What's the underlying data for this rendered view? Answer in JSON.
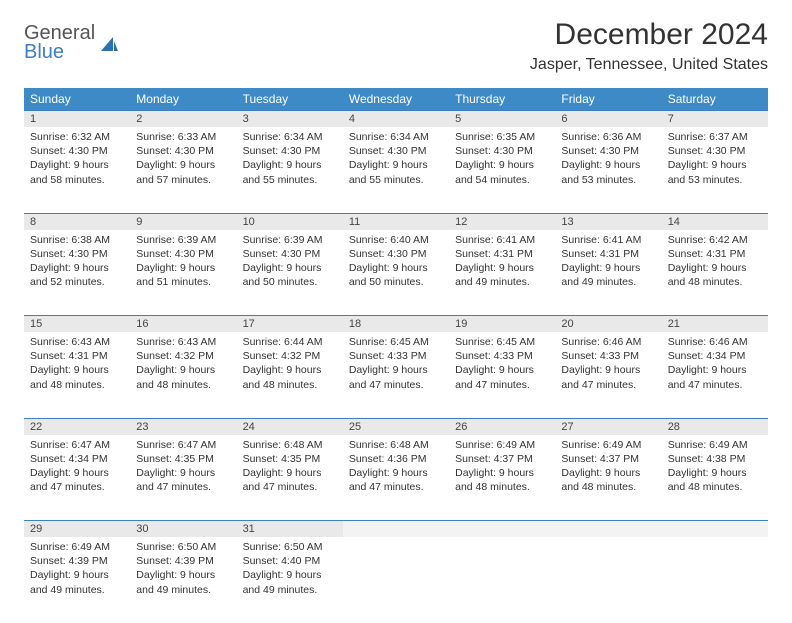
{
  "logo": {
    "line1": "General",
    "line2": "Blue",
    "sail_color": "#2e6fae"
  },
  "title": "December 2024",
  "location": "Jasper, Tennessee, United States",
  "header_bg": "#3d8ac7",
  "daynum_bg": "#e9e9e9",
  "rule_color": "#3d7fbf",
  "days_of_week": [
    "Sunday",
    "Monday",
    "Tuesday",
    "Wednesday",
    "Thursday",
    "Friday",
    "Saturday"
  ],
  "weeks": [
    [
      {
        "n": "1",
        "sr": "6:32 AM",
        "ss": "4:30 PM",
        "dl": "9 hours and 58 minutes."
      },
      {
        "n": "2",
        "sr": "6:33 AM",
        "ss": "4:30 PM",
        "dl": "9 hours and 57 minutes."
      },
      {
        "n": "3",
        "sr": "6:34 AM",
        "ss": "4:30 PM",
        "dl": "9 hours and 55 minutes."
      },
      {
        "n": "4",
        "sr": "6:34 AM",
        "ss": "4:30 PM",
        "dl": "9 hours and 55 minutes."
      },
      {
        "n": "5",
        "sr": "6:35 AM",
        "ss": "4:30 PM",
        "dl": "9 hours and 54 minutes."
      },
      {
        "n": "6",
        "sr": "6:36 AM",
        "ss": "4:30 PM",
        "dl": "9 hours and 53 minutes."
      },
      {
        "n": "7",
        "sr": "6:37 AM",
        "ss": "4:30 PM",
        "dl": "9 hours and 53 minutes."
      }
    ],
    [
      {
        "n": "8",
        "sr": "6:38 AM",
        "ss": "4:30 PM",
        "dl": "9 hours and 52 minutes."
      },
      {
        "n": "9",
        "sr": "6:39 AM",
        "ss": "4:30 PM",
        "dl": "9 hours and 51 minutes."
      },
      {
        "n": "10",
        "sr": "6:39 AM",
        "ss": "4:30 PM",
        "dl": "9 hours and 50 minutes."
      },
      {
        "n": "11",
        "sr": "6:40 AM",
        "ss": "4:30 PM",
        "dl": "9 hours and 50 minutes."
      },
      {
        "n": "12",
        "sr": "6:41 AM",
        "ss": "4:31 PM",
        "dl": "9 hours and 49 minutes."
      },
      {
        "n": "13",
        "sr": "6:41 AM",
        "ss": "4:31 PM",
        "dl": "9 hours and 49 minutes."
      },
      {
        "n": "14",
        "sr": "6:42 AM",
        "ss": "4:31 PM",
        "dl": "9 hours and 48 minutes."
      }
    ],
    [
      {
        "n": "15",
        "sr": "6:43 AM",
        "ss": "4:31 PM",
        "dl": "9 hours and 48 minutes."
      },
      {
        "n": "16",
        "sr": "6:43 AM",
        "ss": "4:32 PM",
        "dl": "9 hours and 48 minutes."
      },
      {
        "n": "17",
        "sr": "6:44 AM",
        "ss": "4:32 PM",
        "dl": "9 hours and 48 minutes."
      },
      {
        "n": "18",
        "sr": "6:45 AM",
        "ss": "4:33 PM",
        "dl": "9 hours and 47 minutes."
      },
      {
        "n": "19",
        "sr": "6:45 AM",
        "ss": "4:33 PM",
        "dl": "9 hours and 47 minutes."
      },
      {
        "n": "20",
        "sr": "6:46 AM",
        "ss": "4:33 PM",
        "dl": "9 hours and 47 minutes."
      },
      {
        "n": "21",
        "sr": "6:46 AM",
        "ss": "4:34 PM",
        "dl": "9 hours and 47 minutes."
      }
    ],
    [
      {
        "n": "22",
        "sr": "6:47 AM",
        "ss": "4:34 PM",
        "dl": "9 hours and 47 minutes."
      },
      {
        "n": "23",
        "sr": "6:47 AM",
        "ss": "4:35 PM",
        "dl": "9 hours and 47 minutes."
      },
      {
        "n": "24",
        "sr": "6:48 AM",
        "ss": "4:35 PM",
        "dl": "9 hours and 47 minutes."
      },
      {
        "n": "25",
        "sr": "6:48 AM",
        "ss": "4:36 PM",
        "dl": "9 hours and 47 minutes."
      },
      {
        "n": "26",
        "sr": "6:49 AM",
        "ss": "4:37 PM",
        "dl": "9 hours and 48 minutes."
      },
      {
        "n": "27",
        "sr": "6:49 AM",
        "ss": "4:37 PM",
        "dl": "9 hours and 48 minutes."
      },
      {
        "n": "28",
        "sr": "6:49 AM",
        "ss": "4:38 PM",
        "dl": "9 hours and 48 minutes."
      }
    ],
    [
      {
        "n": "29",
        "sr": "6:49 AM",
        "ss": "4:39 PM",
        "dl": "9 hours and 49 minutes."
      },
      {
        "n": "30",
        "sr": "6:50 AM",
        "ss": "4:39 PM",
        "dl": "9 hours and 49 minutes."
      },
      {
        "n": "31",
        "sr": "6:50 AM",
        "ss": "4:40 PM",
        "dl": "9 hours and 49 minutes."
      },
      null,
      null,
      null,
      null
    ]
  ],
  "labels": {
    "sunrise": "Sunrise:",
    "sunset": "Sunset:",
    "daylight": "Daylight:"
  }
}
